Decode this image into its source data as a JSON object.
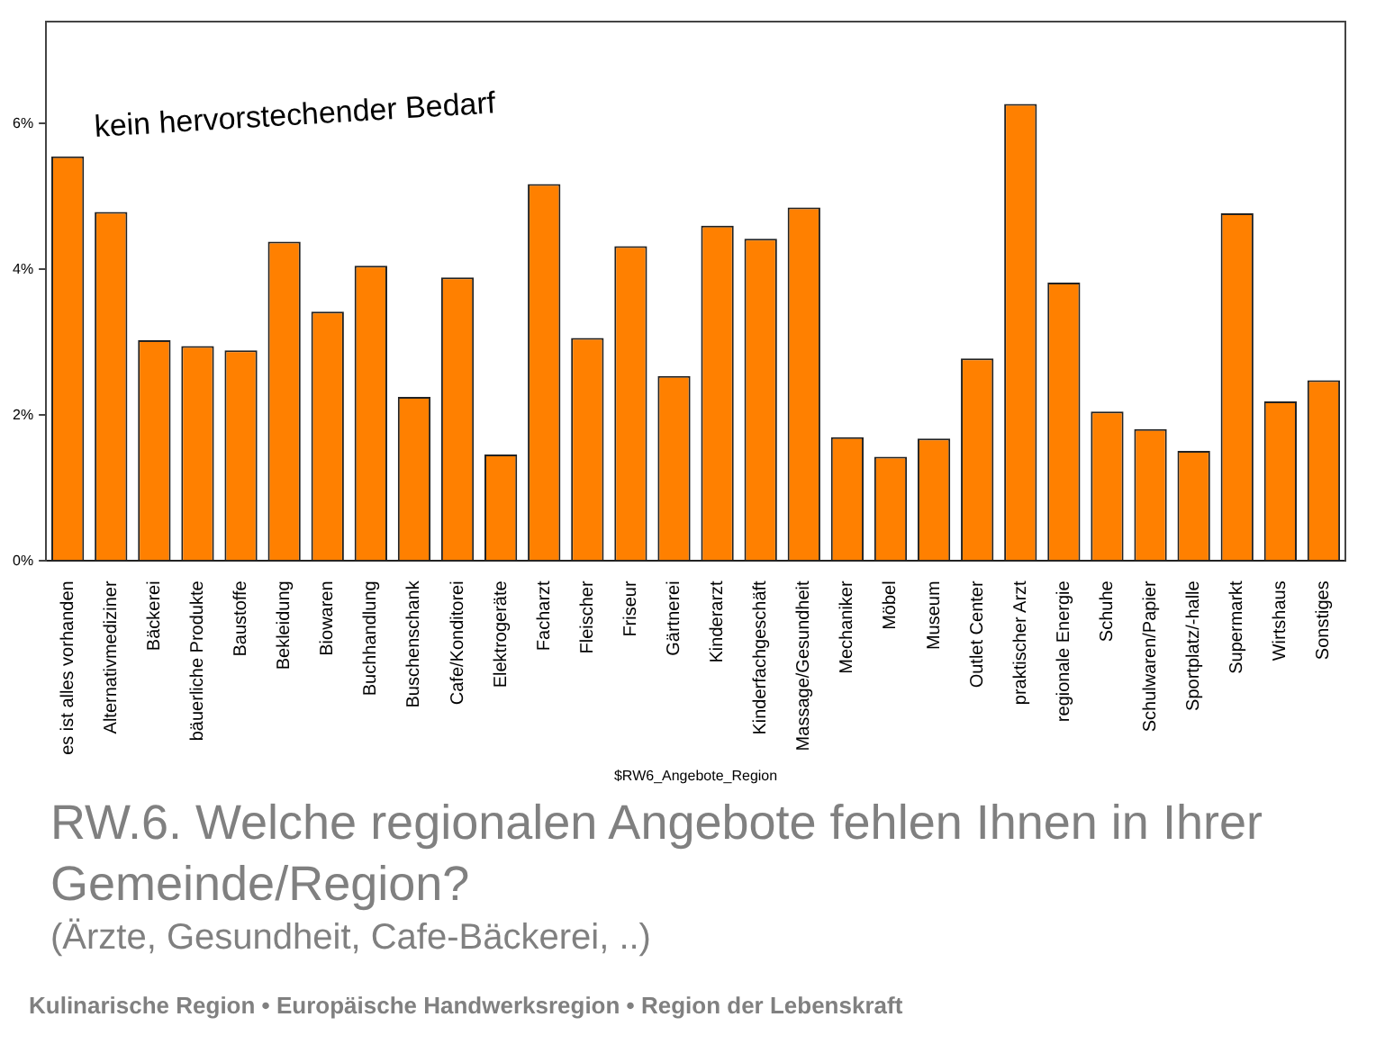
{
  "chart_data": {
    "type": "bar",
    "title": "RW.6. Welche regionalen Angebote fehlen Ihnen in Ihrer Gemeinde/Region?",
    "subtitle": "(Ärzte, Gesundheit, Cafe-Bäckerei, ..)",
    "xlabel": "$RW6_Angebote_Region",
    "annotations": [
      "kein hervorstechender Bedarf",
      "Kulinarische Region • Europäische Handwerksregion • Region der Lebenskraft"
    ],
    "categories": [
      "es ist alles vorhanden",
      "Alternativmediziner",
      "Bäckerei",
      "bäuerliche Produkte",
      "Baustoffe",
      "Bekleidung",
      "Biowaren",
      "Buchhandlung",
      "Buschenschank",
      "Cafe/Konditorei",
      "Elektrogeräte",
      "Facharzt",
      "Fleischer",
      "Friseur",
      "Gärtnerei",
      "Kinderarzt",
      "Kinderfachgeschäft",
      "Massage/Gesundheit",
      "Mechaniker",
      "Möbel",
      "Museum",
      "Outlet Center",
      "praktischer Arzt",
      "regionale Energie",
      "Schuhe",
      "Schulwaren/Papier",
      "Sportplatz/-halle",
      "Supermarkt",
      "Wirtshaus",
      "Sonstiges"
    ],
    "values": [
      5.55,
      4.79,
      3.03,
      2.95,
      2.89,
      4.38,
      3.42,
      4.05,
      2.25,
      3.89,
      1.46,
      5.17,
      3.06,
      4.32,
      2.54,
      4.6,
      4.42,
      4.85,
      1.7,
      1.43,
      1.68,
      2.78,
      6.27,
      3.82,
      2.05,
      1.81,
      1.51,
      4.77,
      2.19,
      2.48
    ],
    "color": "#ff8000",
    "ylim": [
      0,
      7.4
    ],
    "yticks": [
      {
        "value": 0,
        "label": "0%"
      },
      {
        "value": 2,
        "label": "2%"
      },
      {
        "value": 4,
        "label": "4%"
      },
      {
        "value": 6,
        "label": "6%"
      }
    ],
    "grid": false,
    "legend": false
  }
}
